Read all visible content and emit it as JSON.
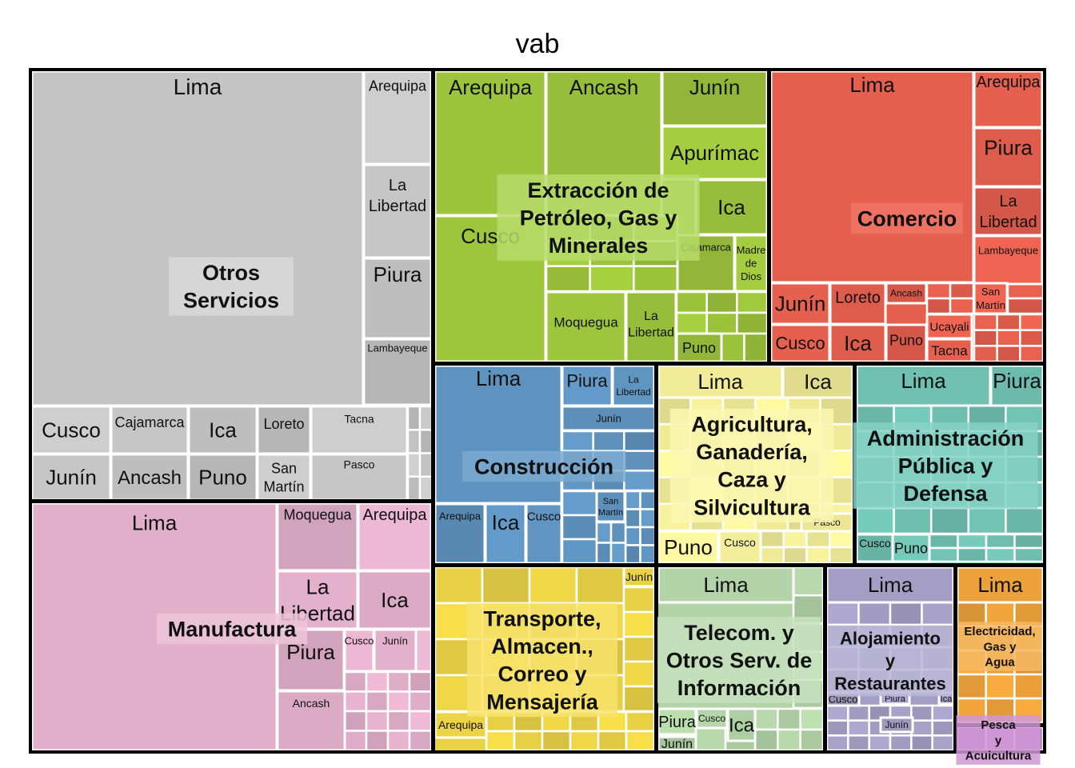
{
  "chart_data": {
    "type": "treemap",
    "title": "vab",
    "sectors": [
      {
        "name": "Otros\nServicios",
        "color": "#c4c4c4",
        "label_bg": "#d9d9d9",
        "label_color": "#000000",
        "regions": [
          "Lima",
          "Arequipa",
          "La\nLibertad",
          "Piura",
          "Lambayeque",
          "Cusco",
          "Cajamarca",
          "Ica",
          "Loreto",
          "Tacna",
          "Junín",
          "Ancash",
          "Puno",
          "San\nMartín",
          "Pasco"
        ]
      },
      {
        "name": "Manufactura",
        "color": "#e2afca",
        "label_bg": "#ecc4d8",
        "label_color": "#000000",
        "regions": [
          "Lima",
          "Moquegua",
          "Arequipa",
          "La\nLibertad",
          "Ica",
          "Piura",
          "Cusco",
          "Junín",
          "Ancash"
        ]
      },
      {
        "name": "Extracción de\nPetróleo, Gas y\nMinerales",
        "color": "#9cc43c",
        "label_bg": "#b6dc6a",
        "label_color": "#000000",
        "regions": [
          "Arequipa",
          "Ancash",
          "Junín",
          "Apurímac",
          "Cusco",
          "Ica",
          "Cajamarca",
          "Madre\nde\nDios",
          "Moquegua",
          "La\nLibertad",
          "Puno"
        ]
      },
      {
        "name": "Comercio",
        "color": "#e45f4e",
        "label_bg": "#ef7566",
        "label_color": "#000000",
        "regions": [
          "Lima",
          "Arequipa",
          "Piura",
          "La\nLibertad",
          "Lambayeque",
          "Junín",
          "Loreto",
          "Ancash",
          "San\nMartín",
          "Cusco",
          "Ica",
          "Puno",
          "Ucayali",
          "Tacna"
        ]
      },
      {
        "name": "Construcción",
        "color": "#5f93bf",
        "label_bg": "#7aa8cf",
        "label_color": "#000000",
        "regions": [
          "Lima",
          "Piura",
          "La\nLibertad",
          "Junín",
          "Arequipa",
          "Ica",
          "Cusco",
          "San\nMartín"
        ]
      },
      {
        "name": "Agricultura,\nGanadería,\nCaza y\nSilvicultura",
        "color": "#f2ec99",
        "label_bg": "#fbf7b0",
        "label_color": "#000000",
        "regions": [
          "Lima",
          "Ica",
          "Puno",
          "Cusco",
          "Pasco"
        ]
      },
      {
        "name": "Administración\nPública y\nDefensa",
        "color": "#6fc0b0",
        "label_bg": "#86d2c4",
        "label_color": "#000000",
        "regions": [
          "Lima",
          "Piura",
          "Cusco",
          "Puno"
        ]
      },
      {
        "name": "Transporte,\nAlmacen.,\nCorreo y\nMensajería",
        "color": "#ead246",
        "label_bg": "#f7e36c",
        "label_color": "#000000",
        "regions": [
          "Junín",
          "Arequipa"
        ]
      },
      {
        "name": "Telecom. y\nOtros Serv. de\nInformación",
        "color": "#b3d4a8",
        "label_bg": "#c7e2be",
        "label_color": "#000000",
        "regions": [
          "Lima",
          "Piura",
          "Cusco",
          "Ica",
          "Junín"
        ]
      },
      {
        "name": "Alojamiento\ny\nRestaurantes",
        "color": "#a49ec4",
        "label_bg": "#bbb6d6",
        "label_color": "#000000",
        "regions": [
          "Lima",
          "Cusco",
          "Piura",
          "Ica",
          "Junín"
        ]
      },
      {
        "name": "Electricidad,\nGas y\nAgua",
        "color": "#eca13a",
        "label_bg": "#f5b862",
        "label_color": "#000000",
        "regions": [
          "Lima"
        ]
      },
      {
        "name": "Pesca\ny\nAcuicultura",
        "color": "#c07ec8",
        "label_bg": "#cf98d4",
        "label_color": "#000000",
        "regions": []
      }
    ]
  }
}
